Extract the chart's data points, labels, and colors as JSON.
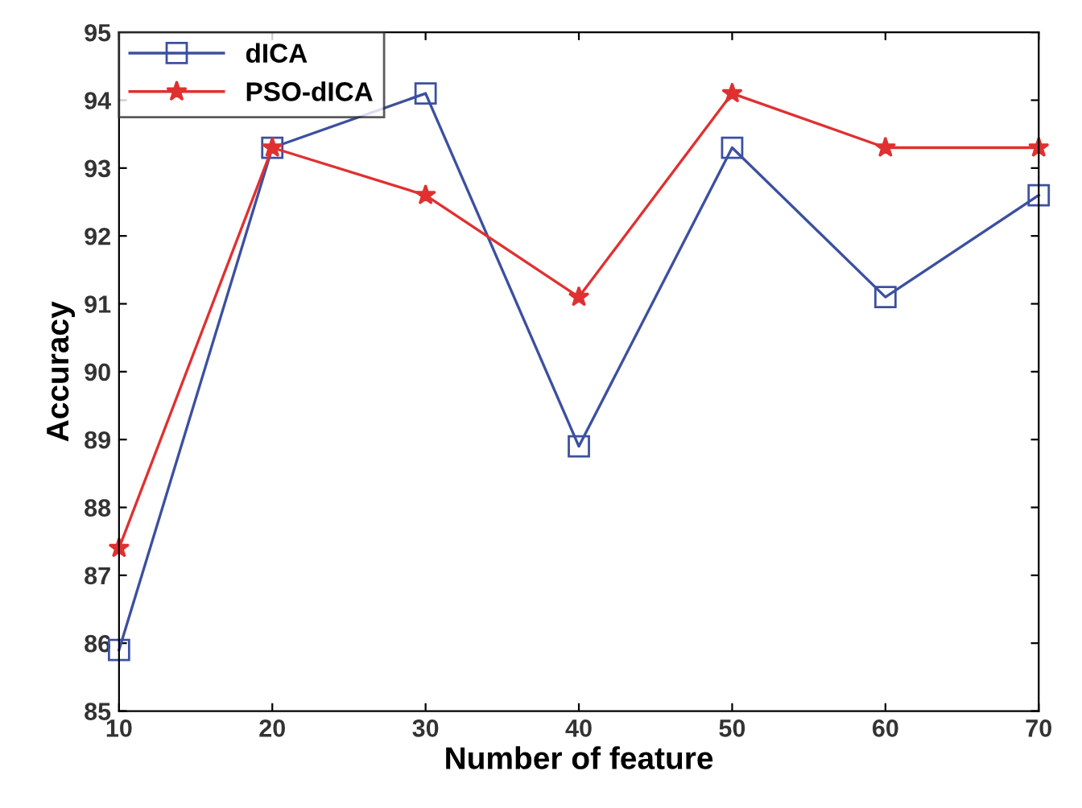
{
  "chart_data": {
    "type": "line",
    "xlabel": "Number of feature",
    "ylabel": "Accuracy",
    "x": [
      10,
      20,
      30,
      40,
      50,
      60,
      70
    ],
    "series": [
      {
        "name": "dICA",
        "color": "#3c50a0",
        "marker": "square",
        "values": [
          85.9,
          93.3,
          94.1,
          88.9,
          93.3,
          91.1,
          92.6
        ]
      },
      {
        "name": "PSO-dICA",
        "color": "#e03030",
        "marker": "star",
        "values": [
          87.4,
          93.3,
          92.6,
          91.1,
          94.1,
          93.3,
          93.3
        ]
      }
    ],
    "xlim": [
      10,
      70
    ],
    "xticks": [
      10,
      20,
      30,
      40,
      50,
      60,
      70
    ],
    "ylim": [
      85,
      95
    ],
    "yticks": [
      85,
      86,
      87,
      88,
      89,
      90,
      91,
      92,
      93,
      94,
      95
    ],
    "grid": false,
    "legend": "top left",
    "line_style": "solid"
  }
}
